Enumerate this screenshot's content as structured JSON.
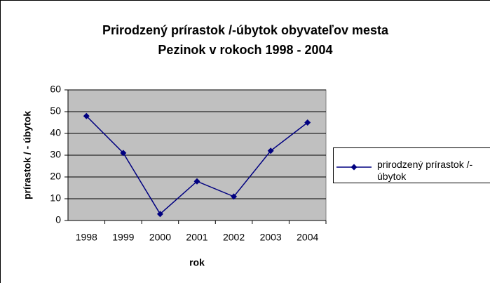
{
  "chart_data": {
    "type": "line",
    "title": [
      "Prirodzený prírastok /-úbytok obyvateľov mesta",
      "Pezinok v rokoch 1998 - 2004"
    ],
    "x_label": "rok",
    "y_label": "prírastok / - úbytok",
    "categories": [
      "1998",
      "1999",
      "2000",
      "2001",
      "2002",
      "2003",
      "2004"
    ],
    "series": [
      {
        "name": "prirodzený prírastok /-úbytok",
        "color": "#000080",
        "values": [
          48,
          31,
          3,
          18,
          11,
          32,
          45
        ]
      }
    ],
    "ylim": [
      0,
      60
    ],
    "yticks": [
      0,
      10,
      20,
      30,
      40,
      50,
      60
    ],
    "grid": true,
    "legend": "right"
  }
}
